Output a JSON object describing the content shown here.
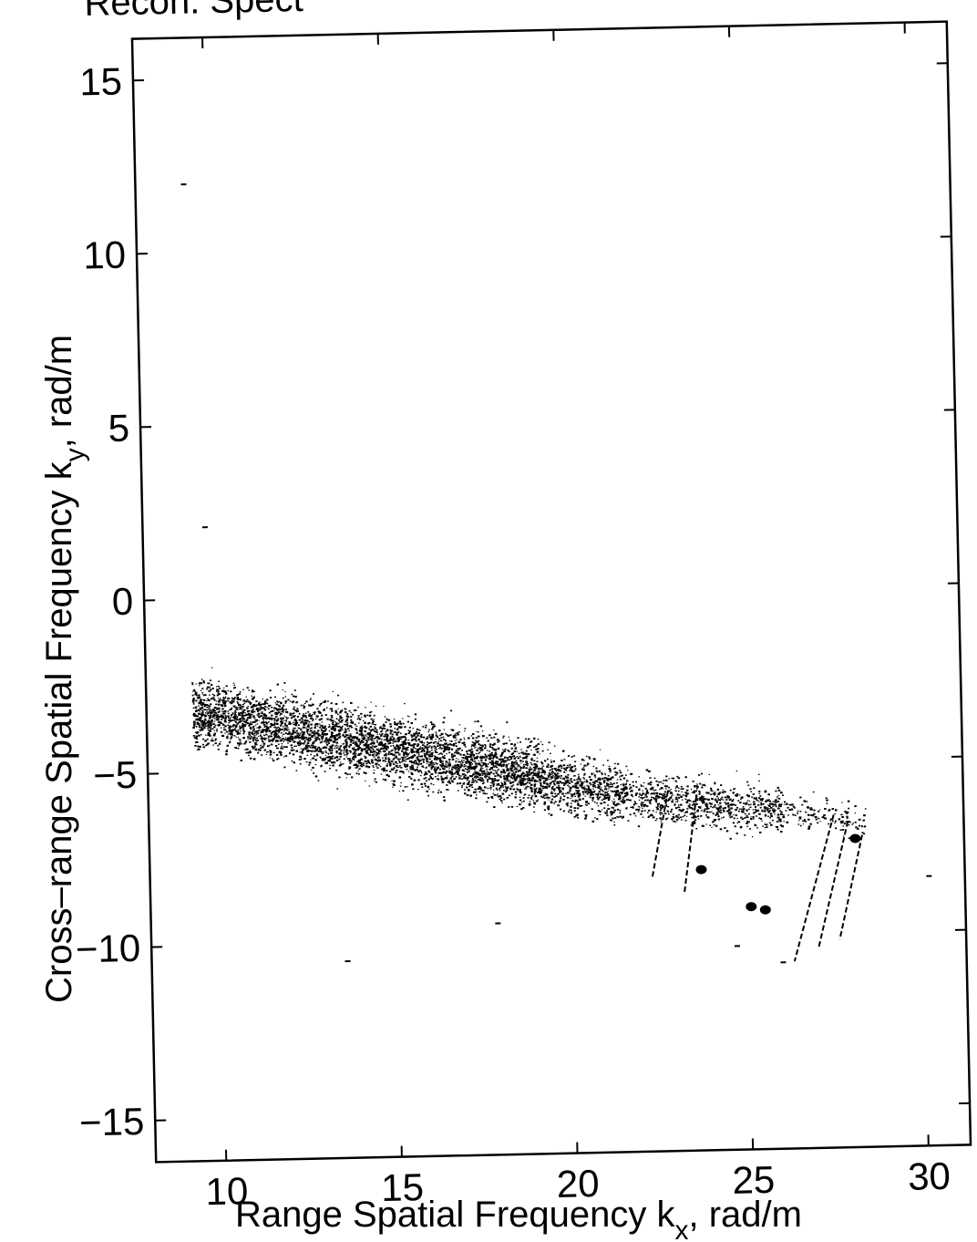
{
  "page": {
    "title_fragment": "Recon. Spect"
  },
  "chart_data": {
    "type": "scatter",
    "title": "",
    "xlabel": "Range Spatial Frequency k",
    "xlabel_subscript": "x",
    "xlabel_unit": ", rad/m",
    "ylabel": "Cross–range Spatial Frequency k",
    "ylabel_subscript": "y",
    "ylabel_unit": ", rad/m",
    "xlim": [
      8,
      31.2
    ],
    "ylim": [
      -16.2,
      16.2
    ],
    "x_ticks": [
      10,
      15,
      20,
      25,
      30
    ],
    "x_tick_labels": [
      "10",
      "15",
      "20",
      "25",
      "30"
    ],
    "y_ticks": [
      15,
      10,
      5,
      0,
      -5,
      -10,
      -15
    ],
    "y_tick_labels": [
      "15",
      "10",
      "5",
      "0",
      "−5",
      "−10",
      "−15"
    ],
    "grid": false,
    "point_color": "#000000",
    "series": [
      {
        "values_description_note": null,
        "clusters": [
          {
            "kx_range": [
              9.3,
              19.2
            ],
            "ky_at_kx_min": -3.2,
            "ky_at_kx_max": -5.3,
            "ky_spread": 1.6,
            "density": 1.0
          },
          {
            "kx_range": [
              19.2,
              21.5
            ],
            "ky_at_kx_min": -5.4,
            "ky_at_kx_max": -5.8,
            "ky_spread": 1.4,
            "density": 0.7
          },
          {
            "kx_range": [
              21.5,
              26.0
            ],
            "ky_at_kx_min": -5.9,
            "ky_at_kx_max": -6.4,
            "ky_spread": 1.2,
            "density": 0.45
          },
          {
            "kx_range": [
              26.0,
              28.4
            ],
            "ky_at_kx_min": -6.4,
            "ky_at_kx_max": -6.8,
            "ky_spread": 0.8,
            "density": 0.15
          }
        ],
        "streaks": [
          {
            "x1": 22.8,
            "y1": -5.8,
            "x2": 22.3,
            "y2": -8.3
          },
          {
            "x1": 23.6,
            "y1": -6.0,
            "x2": 23.2,
            "y2": -8.8
          },
          {
            "x1": 27.5,
            "y1": -6.6,
            "x2": 26.3,
            "y2": -10.8
          },
          {
            "x1": 27.9,
            "y1": -6.8,
            "x2": 27.0,
            "y2": -10.4
          },
          {
            "x1": 28.3,
            "y1": -7.2,
            "x2": 27.6,
            "y2": -10.2
          }
        ],
        "blobs": [
          {
            "x": 25.1,
            "y": -9.2
          },
          {
            "x": 25.5,
            "y": -9.3
          },
          {
            "x": 23.7,
            "y": -8.1
          },
          {
            "x": 28.1,
            "y": -7.3
          }
        ],
        "stray_points": [
          {
            "x": 9.3,
            "y": 12.0
          },
          {
            "x": 9.7,
            "y": 2.1
          },
          {
            "x": 25.9,
            "y": -10.8
          },
          {
            "x": 30.1,
            "y": -8.4
          },
          {
            "x": 24.6,
            "y": -10.3
          },
          {
            "x": 13.5,
            "y": -10.5
          },
          {
            "x": 17.8,
            "y": -9.5
          }
        ]
      }
    ]
  }
}
